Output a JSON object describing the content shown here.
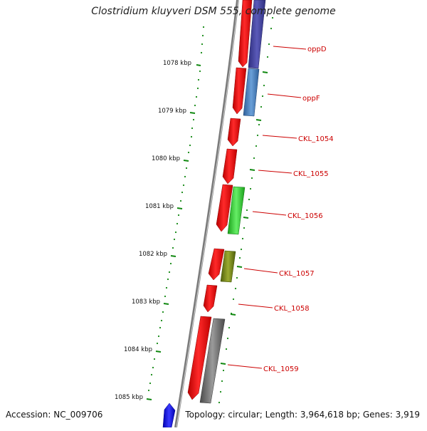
{
  "title": "Clostridium kluyveri DSM 555, complete genome",
  "footer": {
    "accession": "Accession: NC_009706",
    "topology": "Topology: circular; Length: 3,964,618 bp; Genes: 3,919"
  },
  "colors": {
    "backbone": "#8a8a8a",
    "forward_strand": "#ff1a1a",
    "gene_label": "#cc0000",
    "tick": "#118811",
    "oppD": "#4a4aa8",
    "oppF": "#4f86c6",
    "CKL_1056": "#33cc33",
    "CKL_1057": "#7a8a1a",
    "CKL_1059": "#6e6e6e",
    "extra": "#1a1ad8"
  },
  "scale": {
    "unit": "kbp",
    "ticks": [
      "1078 kbp",
      "1079 kbp",
      "1080 kbp",
      "1081 kbp",
      "1082 kbp",
      "1083 kbp",
      "1084 kbp",
      "1085 kbp"
    ]
  },
  "genes": [
    {
      "name": "oppD"
    },
    {
      "name": "oppF"
    },
    {
      "name": "CKL_1054"
    },
    {
      "name": "CKL_1055"
    },
    {
      "name": "CKL_1056"
    },
    {
      "name": "CKL_1057"
    },
    {
      "name": "CKL_1058"
    },
    {
      "name": "CKL_1059"
    }
  ]
}
